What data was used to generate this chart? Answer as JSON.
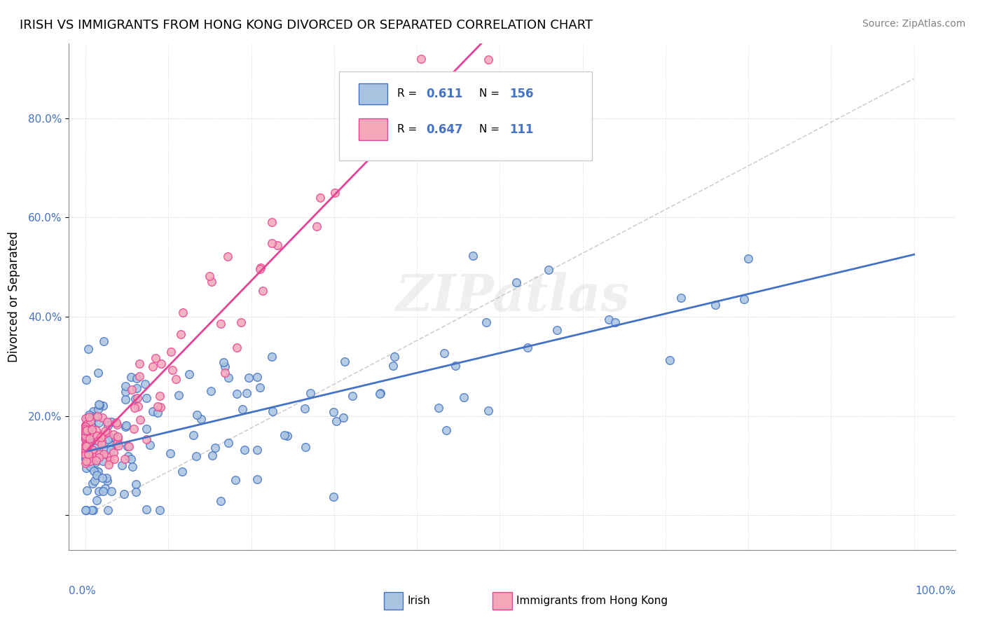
{
  "title": "IRISH VS IMMIGRANTS FROM HONG KONG DIVORCED OR SEPARATED CORRELATION CHART",
  "source": "Source: ZipAtlas.com",
  "ylabel": "Divorced or Separated",
  "legend_irish": "Irish",
  "legend_hk": "Immigrants from Hong Kong",
  "irish_R": 0.611,
  "irish_N": 156,
  "hk_R": 0.647,
  "hk_N": 111,
  "irish_color": "#a8c4e0",
  "hk_color": "#f4a7b9",
  "irish_line_color": "#4472c4",
  "hk_line_color": "#e84393",
  "background_color": "#ffffff",
  "axis_label_color": "#4472c4",
  "yticks": [
    0.0,
    0.2,
    0.4,
    0.6,
    0.8
  ],
  "ytick_labels": [
    "",
    "20.0%",
    "40.0%",
    "60.0%",
    "80.0%"
  ]
}
